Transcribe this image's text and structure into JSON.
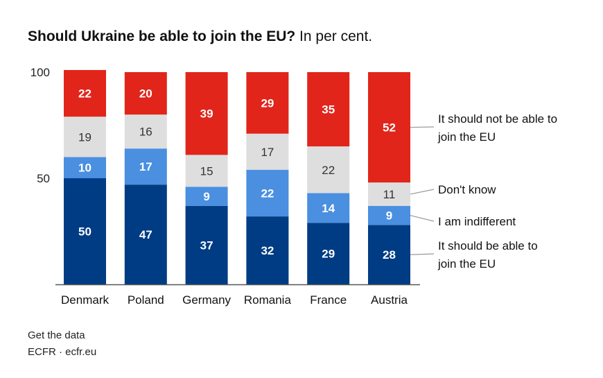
{
  "chart_data": {
    "type": "bar",
    "stacked": true,
    "title": "Should Ukraine be able to join the EU?",
    "subtitle": "In per cent.",
    "categories": [
      "Denmark",
      "Poland",
      "Germany",
      "Romania",
      "France",
      "Austria"
    ],
    "series": [
      {
        "name": "It should be able to join the EU",
        "color": "#003c84",
        "label_color": "#ffffff",
        "values": [
          50,
          47,
          37,
          32,
          29,
          28
        ]
      },
      {
        "name": "I am indifferent",
        "color": "#4a8fe0",
        "label_color": "#ffffff",
        "values": [
          10,
          17,
          9,
          22,
          14,
          9
        ]
      },
      {
        "name": "Don't know",
        "color": "#dedede",
        "label_color": "#333333",
        "values": [
          19,
          16,
          15,
          17,
          22,
          11
        ]
      },
      {
        "name": "It should not be able to join the EU",
        "color": "#e1251b",
        "label_color": "#ffffff",
        "values": [
          22,
          20,
          39,
          29,
          35,
          52
        ]
      }
    ],
    "yticks": [
      50,
      100
    ],
    "ylim": [
      0,
      100
    ],
    "grid": false,
    "legend_placement": "right, direct labels"
  },
  "footer": {
    "get_data": "Get the data",
    "source": "ECFR · ecfr.eu"
  }
}
